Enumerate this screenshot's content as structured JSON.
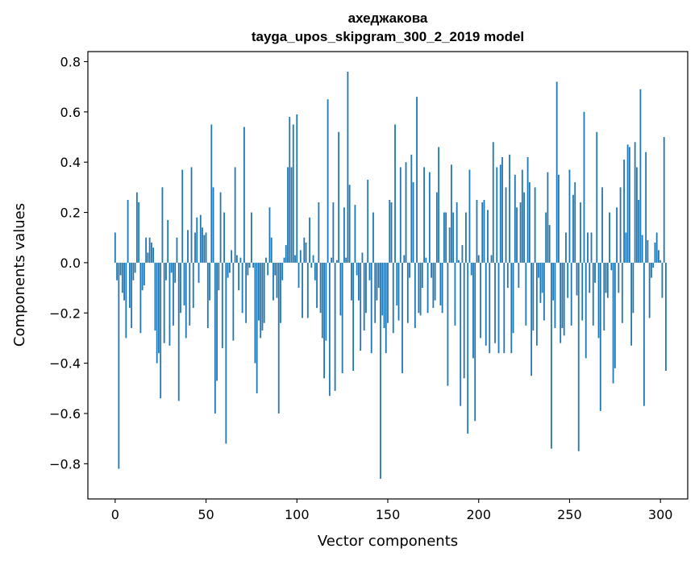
{
  "chart_data": {
    "type": "bar",
    "title": "ахеджакова",
    "subtitle": "tayga_upos_skipgram_300_2_2019 model",
    "xlabel": "Vector components",
    "ylabel": "Components values",
    "xlim": [
      -15,
      315
    ],
    "ylim": [
      -0.94,
      0.84
    ],
    "xticks": [
      0,
      50,
      100,
      150,
      200,
      250,
      300
    ],
    "xtick_labels": [
      "0",
      "50",
      "100",
      "150",
      "200",
      "250",
      "300"
    ],
    "yticks": [
      -0.8,
      -0.6,
      -0.4,
      -0.2,
      0.0,
      0.2,
      0.4,
      0.6,
      0.8
    ],
    "ytick_labels": [
      "−0.8",
      "−0.6",
      "−0.4",
      "−0.2",
      "0.0",
      "0.2",
      "0.4",
      "0.6",
      "0.8"
    ],
    "grid": false,
    "bar_color": "#1f77b4",
    "values": [
      0.12,
      -0.07,
      -0.82,
      -0.05,
      -0.12,
      -0.15,
      -0.3,
      0.25,
      -0.18,
      -0.26,
      -0.07,
      -0.04,
      0.28,
      0.24,
      -0.28,
      -0.11,
      -0.09,
      0.1,
      0.04,
      0.1,
      0.08,
      0.06,
      -0.27,
      -0.4,
      -0.36,
      -0.54,
      0.3,
      -0.32,
      -0.07,
      0.17,
      -0.33,
      -0.04,
      -0.25,
      -0.08,
      0.1,
      -0.55,
      -0.2,
      0.37,
      -0.17,
      -0.3,
      0.13,
      -0.25,
      0.38,
      -0.18,
      0.12,
      0.18,
      -0.08,
      0.19,
      0.14,
      0.11,
      0.12,
      -0.26,
      -0.15,
      0.55,
      0.3,
      -0.6,
      -0.47,
      -0.11,
      0.28,
      -0.34,
      0.2,
      -0.72,
      -0.06,
      -0.04,
      0.05,
      -0.31,
      0.38,
      0.03,
      -0.11,
      0.02,
      -0.2,
      0.54,
      -0.24,
      -0.05,
      -0.02,
      0.2,
      -0.02,
      -0.4,
      -0.52,
      -0.23,
      -0.3,
      -0.27,
      -0.24,
      0.02,
      -0.05,
      0.22,
      0.1,
      -0.15,
      -0.05,
      -0.14,
      -0.6,
      -0.24,
      -0.07,
      0.02,
      0.07,
      0.38,
      0.58,
      0.38,
      0.55,
      0.03,
      0.59,
      -0.1,
      0.05,
      -0.22,
      0.1,
      0.08,
      -0.22,
      0.18,
      -0.02,
      0.03,
      -0.07,
      -0.18,
      0.24,
      -0.2,
      -0.3,
      -0.46,
      -0.31,
      0.65,
      -0.53,
      0.02,
      0.24,
      -0.51,
      0.01,
      0.52,
      -0.21,
      -0.44,
      0.22,
      0.02,
      0.76,
      0.31,
      -0.15,
      -0.43,
      0.23,
      -0.05,
      -0.15,
      -0.35,
      0.04,
      -0.27,
      -0.2,
      0.33,
      -0.07,
      -0.36,
      0.2,
      -0.24,
      -0.15,
      -0.1,
      -0.86,
      -0.21,
      -0.26,
      -0.36,
      -0.24,
      0.25,
      0.24,
      -0.28,
      0.55,
      -0.17,
      -0.23,
      0.38,
      -0.44,
      0.03,
      0.4,
      -0.24,
      -0.06,
      0.43,
      0.32,
      -0.26,
      0.66,
      -0.2,
      -0.21,
      -0.1,
      0.38,
      0.02,
      -0.2,
      0.36,
      -0.06,
      -0.18,
      -0.15,
      0.28,
      0.46,
      -0.17,
      -0.2,
      0.2,
      0.2,
      -0.49,
      0.14,
      0.39,
      0.2,
      -0.25,
      0.24,
      0.01,
      -0.57,
      0.07,
      -0.46,
      0.2,
      -0.68,
      0.37,
      -0.05,
      -0.38,
      -0.63,
      0.25,
      0.03,
      -0.3,
      0.24,
      0.25,
      -0.33,
      0.21,
      -0.36,
      0.03,
      0.48,
      -0.32,
      0.38,
      -0.36,
      0.39,
      0.42,
      -0.36,
      0.3,
      -0.1,
      0.43,
      -0.36,
      -0.28,
      0.35,
      0.22,
      -0.1,
      0.24,
      0.37,
      0.28,
      -0.25,
      0.42,
      0.32,
      -0.45,
      -0.27,
      0.3,
      -0.33,
      -0.06,
      -0.16,
      -0.12,
      -0.23,
      0.2,
      0.36,
      0.15,
      -0.74,
      -0.15,
      -0.26,
      0.72,
      0.35,
      -0.32,
      -0.26,
      -0.29,
      0.12,
      -0.14,
      0.37,
      -0.25,
      0.27,
      0.32,
      -0.13,
      -0.75,
      0.24,
      -0.23,
      0.6,
      -0.38,
      0.12,
      -0.12,
      0.12,
      -0.25,
      -0.08,
      0.52,
      -0.3,
      -0.59,
      0.3,
      -0.27,
      -0.12,
      -0.14,
      0.2,
      -0.03,
      -0.48,
      -0.42,
      0.22,
      -0.12,
      0.3,
      -0.24,
      0.41,
      0.12,
      0.47,
      0.46,
      -0.33,
      -0.2,
      0.48,
      0.38,
      0.25,
      0.69,
      0.11,
      -0.57,
      0.44,
      0.09,
      -0.22,
      -0.06,
      -0.02,
      0.08,
      0.12,
      0.05,
      0.01,
      -0.14,
      0.5,
      -0.43
    ]
  }
}
